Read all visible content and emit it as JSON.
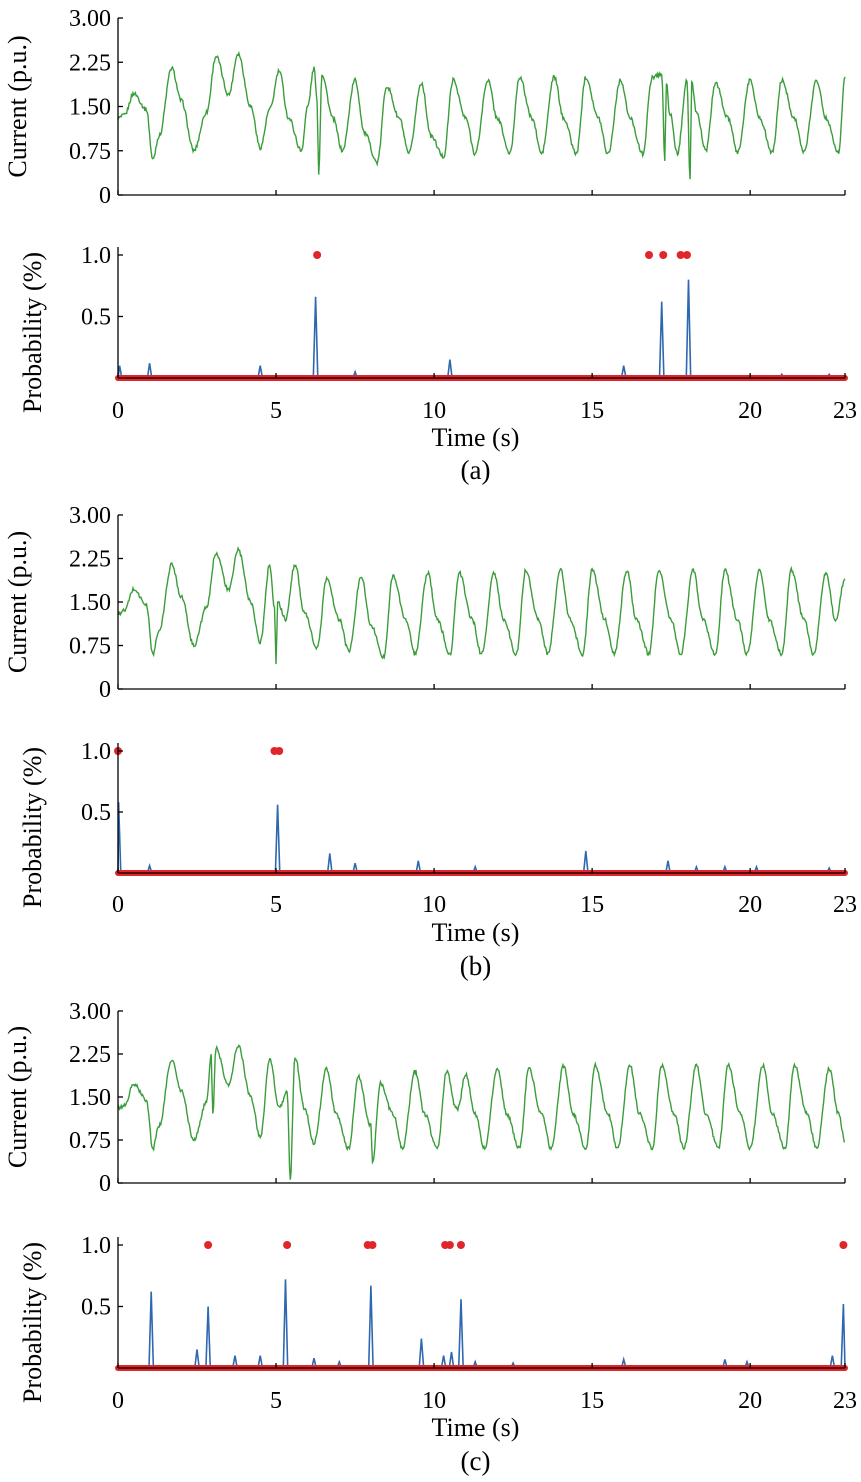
{
  "chart_data": [
    {
      "panel": "(a)",
      "current": {
        "type": "line",
        "ylabel": "Current (p.u.)",
        "ylim": [
          0,
          3.0
        ],
        "yticks": [
          "0",
          "0.75",
          "1.50",
          "2.25",
          "3.00"
        ],
        "xlim": [
          0,
          23
        ],
        "series": [
          {
            "color": "#3a9d3a",
            "x": [
              0,
              0.2,
              0.5,
              0.9,
              1.1,
              1.3,
              1.7,
              2.0,
              2.4,
              2.8,
              3.1,
              3.5,
              3.8,
              4.2,
              4.5,
              4.8,
              5.1,
              5.4,
              5.8,
              6.0,
              6.2,
              6.3,
              6.35,
              6.45,
              6.8,
              7.1,
              7.5,
              7.8,
              8.2,
              8.5,
              8.9,
              9.2,
              9.6,
              9.9,
              10.3,
              10.6,
              11.0,
              11.3,
              11.7,
              12.0,
              12.4,
              12.7,
              13.1,
              13.4,
              13.8,
              14.1,
              14.5,
              14.8,
              15.2,
              15.5,
              15.9,
              16.2,
              16.6,
              16.9,
              17.2,
              17.3,
              17.35,
              17.45,
              17.7,
              18.0,
              18.1,
              18.15,
              18.3,
              18.6,
              18.9,
              19.3,
              19.6,
              20.0,
              20.3,
              20.7,
              21.0,
              21.4,
              21.7,
              22.1,
              22.4,
              22.8,
              23.0
            ],
            "y": [
              1.3,
              1.35,
              1.72,
              1.45,
              0.6,
              1.0,
              2.15,
              1.6,
              0.75,
              1.4,
              2.35,
              1.7,
              2.4,
              1.5,
              0.8,
              1.45,
              2.1,
              1.3,
              0.75,
              1.5,
              2.15,
              1.6,
              0.35,
              2.05,
              1.3,
              0.75,
              1.95,
              1.05,
              0.55,
              1.85,
              1.3,
              0.7,
              1.9,
              1.0,
              0.65,
              1.95,
              1.3,
              0.7,
              1.95,
              1.3,
              0.7,
              2.0,
              1.3,
              0.7,
              2.0,
              1.3,
              0.7,
              2.0,
              1.3,
              0.7,
              1.95,
              1.3,
              0.7,
              2.0,
              2.05,
              0.6,
              1.9,
              1.4,
              0.7,
              1.95,
              0.25,
              1.9,
              1.4,
              0.75,
              1.9,
              1.3,
              0.72,
              1.95,
              1.3,
              0.72,
              1.95,
              1.3,
              0.72,
              1.95,
              1.3,
              0.72,
              2.0
            ]
          }
        ]
      },
      "probability": {
        "type": "line",
        "ylabel": "Probability (%)",
        "xlabel": "Time (s)",
        "ylim": [
          0,
          1.0
        ],
        "yticks": [
          "0.5",
          "1.0"
        ],
        "xlim": [
          0,
          23
        ],
        "xticks": [
          "0",
          "5",
          "10",
          "15",
          "20",
          "23"
        ],
        "series": [
          {
            "color": "#2e68b0",
            "peaks": [
              [
                0.05,
                0.1
              ],
              [
                1.0,
                0.12
              ],
              [
                4.5,
                0.1
              ],
              [
                6.25,
                0.66
              ],
              [
                7.5,
                0.05
              ],
              [
                10.5,
                0.15
              ],
              [
                16.0,
                0.1
              ],
              [
                17.2,
                0.62
              ],
              [
                18.05,
                0.8
              ],
              [
                21.0,
                0.03
              ],
              [
                22.5,
                0.03
              ]
            ]
          },
          {
            "color": "#e0262b",
            "markers_x": [
              6.3,
              16.8,
              17.25,
              17.8,
              18.0
            ]
          }
        ]
      }
    },
    {
      "panel": "(b)",
      "current": {
        "type": "line",
        "ylabel": "Current (p.u.)",
        "ylim": [
          0,
          3.0
        ],
        "yticks": [
          "0",
          "0.75",
          "1.50",
          "2.25",
          "3.00"
        ],
        "xlim": [
          0,
          23
        ],
        "series": [
          {
            "color": "#3a9d3a",
            "x": [
              0,
              0.2,
              0.5,
              0.9,
              1.1,
              1.3,
              1.7,
              2.0,
              2.4,
              2.8,
              3.1,
              3.5,
              3.8,
              4.2,
              4.5,
              4.8,
              4.95,
              5.0,
              5.05,
              5.3,
              5.6,
              5.9,
              6.3,
              6.6,
              7.0,
              7.3,
              7.7,
              8.0,
              8.4,
              8.7,
              9.1,
              9.4,
              9.8,
              10.1,
              10.5,
              10.8,
              11.2,
              11.5,
              11.9,
              12.2,
              12.6,
              12.9,
              13.3,
              13.6,
              14.0,
              14.3,
              14.7,
              15.0,
              15.4,
              15.7,
              16.1,
              16.4,
              16.8,
              17.1,
              17.5,
              17.8,
              18.2,
              18.5,
              18.9,
              19.2,
              19.6,
              19.9,
              20.3,
              20.6,
              21.0,
              21.3,
              21.7,
              22.0,
              22.4,
              22.7,
              23.0
            ],
            "y": [
              1.3,
              1.35,
              1.72,
              1.45,
              0.6,
              1.0,
              2.15,
              1.6,
              0.75,
              1.4,
              2.35,
              1.7,
              2.4,
              1.5,
              0.8,
              2.15,
              1.4,
              0.4,
              1.5,
              1.2,
              2.15,
              1.3,
              0.7,
              1.9,
              1.2,
              0.65,
              1.95,
              1.1,
              0.55,
              1.95,
              1.2,
              0.6,
              2.0,
              1.2,
              0.6,
              2.0,
              1.2,
              0.6,
              2.0,
              1.2,
              0.6,
              2.05,
              1.2,
              0.6,
              2.05,
              1.2,
              0.6,
              2.05,
              1.2,
              0.6,
              2.05,
              1.2,
              0.6,
              2.05,
              1.2,
              0.6,
              2.05,
              1.2,
              0.6,
              2.05,
              1.2,
              0.6,
              2.05,
              1.2,
              0.6,
              2.05,
              1.2,
              0.6,
              2.0,
              1.2,
              1.9
            ]
          }
        ]
      },
      "probability": {
        "type": "line",
        "ylabel": "Probability (%)",
        "xlabel": "Time (s)",
        "ylim": [
          0,
          1.0
        ],
        "yticks": [
          "0.5",
          "1.0"
        ],
        "xlim": [
          0,
          23
        ],
        "xticks": [
          "0",
          "5",
          "10",
          "15",
          "20",
          "23"
        ],
        "series": [
          {
            "color": "#2e68b0",
            "peaks": [
              [
                0.02,
                0.58
              ],
              [
                1.0,
                0.06
              ],
              [
                5.05,
                0.56
              ],
              [
                6.7,
                0.16
              ],
              [
                7.5,
                0.08
              ],
              [
                9.5,
                0.1
              ],
              [
                11.3,
                0.05
              ],
              [
                14.8,
                0.18
              ],
              [
                17.4,
                0.1
              ],
              [
                18.3,
                0.05
              ],
              [
                19.2,
                0.05
              ],
              [
                20.2,
                0.05
              ],
              [
                22.5,
                0.04
              ]
            ]
          },
          {
            "color": "#e0262b",
            "markers_x": [
              0.0,
              4.95,
              5.1
            ]
          }
        ]
      }
    },
    {
      "panel": "(c)",
      "current": {
        "type": "line",
        "ylabel": "Current (p.u.)",
        "ylim": [
          0,
          3.0
        ],
        "yticks": [
          "0",
          "0.75",
          "1.50",
          "2.25",
          "3.00"
        ],
        "xlim": [
          0,
          23
        ],
        "series": [
          {
            "color": "#3a9d3a",
            "x": [
              0,
              0.2,
              0.5,
              0.9,
              1.1,
              1.3,
              1.7,
              2.0,
              2.4,
              2.8,
              2.95,
              3.0,
              3.1,
              3.5,
              3.8,
              4.2,
              4.5,
              4.8,
              5.1,
              5.35,
              5.45,
              5.6,
              5.9,
              6.2,
              6.6,
              6.9,
              7.3,
              7.6,
              8.0,
              8.05,
              8.3,
              8.7,
              9.0,
              9.4,
              9.7,
              10.1,
              10.4,
              10.7,
              10.75,
              11.0,
              11.3,
              11.6,
              12.0,
              12.3,
              12.7,
              13.0,
              13.4,
              13.7,
              14.1,
              14.4,
              14.8,
              15.1,
              15.5,
              15.8,
              16.2,
              16.5,
              16.9,
              17.2,
              17.6,
              17.9,
              18.3,
              18.6,
              19.0,
              19.3,
              19.7,
              20.0,
              20.4,
              20.7,
              21.1,
              21.4,
              21.8,
              22.1,
              22.5,
              22.8,
              23.0
            ],
            "y": [
              1.3,
              1.35,
              1.72,
              1.45,
              0.6,
              1.0,
              2.15,
              1.6,
              0.75,
              1.4,
              2.25,
              1.2,
              2.35,
              1.7,
              2.4,
              1.5,
              0.8,
              2.15,
              1.3,
              1.6,
              0.08,
              2.2,
              1.3,
              0.7,
              2.0,
              1.2,
              0.6,
              1.85,
              1.0,
              0.35,
              1.75,
              1.2,
              0.6,
              1.95,
              1.2,
              0.6,
              1.95,
              1.3,
              1.3,
              1.9,
              1.2,
              0.6,
              2.0,
              1.2,
              0.6,
              2.0,
              1.2,
              0.6,
              2.05,
              1.2,
              0.6,
              2.05,
              1.2,
              0.6,
              2.05,
              1.2,
              0.6,
              2.05,
              1.2,
              0.6,
              2.05,
              1.2,
              0.6,
              2.05,
              1.2,
              0.6,
              2.05,
              1.2,
              0.6,
              2.05,
              1.2,
              0.6,
              2.0,
              1.2,
              0.72
            ]
          }
        ]
      },
      "probability": {
        "type": "line",
        "ylabel": "Probability (%)",
        "xlabel": "Time (s)",
        "ylim": [
          0,
          1.0
        ],
        "yticks": [
          "0.5",
          "1.0"
        ],
        "xlim": [
          0,
          23
        ],
        "xticks": [
          "0",
          "5",
          "10",
          "15",
          "20",
          "23"
        ],
        "series": [
          {
            "color": "#2e68b0",
            "peaks": [
              [
                1.05,
                0.62
              ],
              [
                2.5,
                0.15
              ],
              [
                2.85,
                0.5
              ],
              [
                3.7,
                0.1
              ],
              [
                4.5,
                0.1
              ],
              [
                5.3,
                0.72
              ],
              [
                6.2,
                0.08
              ],
              [
                7.0,
                0.05
              ],
              [
                8.0,
                0.67
              ],
              [
                9.6,
                0.24
              ],
              [
                10.3,
                0.1
              ],
              [
                10.55,
                0.13
              ],
              [
                10.85,
                0.56
              ],
              [
                11.3,
                0.05
              ],
              [
                12.5,
                0.04
              ],
              [
                16.0,
                0.07
              ],
              [
                19.2,
                0.07
              ],
              [
                19.9,
                0.05
              ],
              [
                22.6,
                0.1
              ],
              [
                22.95,
                0.52
              ]
            ]
          },
          {
            "color": "#e0262b",
            "markers_x": [
              2.85,
              5.35,
              7.9,
              8.05,
              10.35,
              10.5,
              10.85,
              22.95
            ]
          }
        ]
      }
    }
  ]
}
